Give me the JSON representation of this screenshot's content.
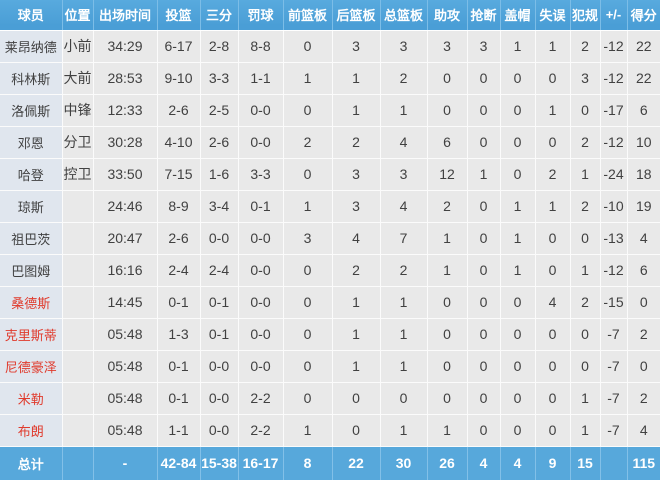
{
  "table": {
    "columns": [
      {
        "key": "player",
        "label": "球员"
      },
      {
        "key": "pos",
        "label": "位置"
      },
      {
        "key": "min",
        "label": "出场时间"
      },
      {
        "key": "fg",
        "label": "投篮"
      },
      {
        "key": "threes",
        "label": "三分"
      },
      {
        "key": "ft",
        "label": "罚球"
      },
      {
        "key": "oreb",
        "label": "前篮板"
      },
      {
        "key": "dreb",
        "label": "后篮板"
      },
      {
        "key": "reb",
        "label": "总篮板"
      },
      {
        "key": "ast",
        "label": "助攻"
      },
      {
        "key": "stl",
        "label": "抢断"
      },
      {
        "key": "blk",
        "label": "盖帽"
      },
      {
        "key": "tov",
        "label": "失误"
      },
      {
        "key": "pf",
        "label": "犯规"
      },
      {
        "key": "plusminus",
        "label": "+/-"
      },
      {
        "key": "pts",
        "label": "得分"
      }
    ],
    "rows": [
      {
        "name_red": false,
        "cells": [
          "莱昂纳德",
          "小前",
          "34:29",
          "6-17",
          "2-8",
          "8-8",
          "0",
          "3",
          "3",
          "3",
          "3",
          "1",
          "1",
          "2",
          "-12",
          "22"
        ]
      },
      {
        "name_red": false,
        "cells": [
          "科林斯",
          "大前",
          "28:53",
          "9-10",
          "3-3",
          "1-1",
          "1",
          "1",
          "2",
          "0",
          "0",
          "0",
          "0",
          "3",
          "-12",
          "22"
        ]
      },
      {
        "name_red": false,
        "cells": [
          "洛佩斯",
          "中锋",
          "12:33",
          "2-6",
          "2-5",
          "0-0",
          "0",
          "1",
          "1",
          "0",
          "0",
          "0",
          "1",
          "0",
          "-17",
          "6"
        ]
      },
      {
        "name_red": false,
        "cells": [
          "邓恩",
          "分卫",
          "30:28",
          "4-10",
          "2-6",
          "0-0",
          "2",
          "2",
          "4",
          "6",
          "0",
          "0",
          "0",
          "2",
          "-12",
          "10"
        ]
      },
      {
        "name_red": false,
        "cells": [
          "哈登",
          "控卫",
          "33:50",
          "7-15",
          "1-6",
          "3-3",
          "0",
          "3",
          "3",
          "12",
          "1",
          "0",
          "2",
          "1",
          "-24",
          "18"
        ]
      },
      {
        "name_red": false,
        "cells": [
          "琼斯",
          "",
          "24:46",
          "8-9",
          "3-4",
          "0-1",
          "1",
          "3",
          "4",
          "2",
          "0",
          "1",
          "1",
          "2",
          "-10",
          "19"
        ]
      },
      {
        "name_red": false,
        "cells": [
          "祖巴茨",
          "",
          "20:47",
          "2-6",
          "0-0",
          "0-0",
          "3",
          "4",
          "7",
          "1",
          "0",
          "1",
          "0",
          "0",
          "-13",
          "4"
        ]
      },
      {
        "name_red": false,
        "cells": [
          "巴图姆",
          "",
          "16:16",
          "2-4",
          "2-4",
          "0-0",
          "0",
          "2",
          "2",
          "1",
          "0",
          "1",
          "0",
          "1",
          "-12",
          "6"
        ]
      },
      {
        "name_red": true,
        "cells": [
          "桑德斯",
          "",
          "14:45",
          "0-1",
          "0-1",
          "0-0",
          "0",
          "1",
          "1",
          "0",
          "0",
          "0",
          "4",
          "2",
          "-15",
          "0"
        ]
      },
      {
        "name_red": true,
        "cells": [
          "克里斯蒂",
          "",
          "05:48",
          "1-3",
          "0-1",
          "0-0",
          "0",
          "1",
          "1",
          "0",
          "0",
          "0",
          "0",
          "0",
          "-7",
          "2"
        ]
      },
      {
        "name_red": true,
        "cells": [
          "尼德豪泽",
          "",
          "05:48",
          "0-1",
          "0-0",
          "0-0",
          "0",
          "1",
          "1",
          "0",
          "0",
          "0",
          "0",
          "0",
          "-7",
          "0"
        ]
      },
      {
        "name_red": true,
        "cells": [
          "米勒",
          "",
          "05:48",
          "0-1",
          "0-0",
          "2-2",
          "0",
          "0",
          "0",
          "0",
          "0",
          "0",
          "0",
          "1",
          "-7",
          "2"
        ]
      },
      {
        "name_red": true,
        "cells": [
          "布朗",
          "",
          "05:48",
          "1-1",
          "0-0",
          "2-2",
          "1",
          "0",
          "1",
          "1",
          "0",
          "0",
          "0",
          "1",
          "-7",
          "4"
        ]
      }
    ],
    "totals": {
      "cells": [
        "总计",
        "",
        "-",
        "42-84",
        "15-38",
        "16-17",
        "8",
        "22",
        "30",
        "26",
        "4",
        "4",
        "9",
        "15",
        "",
        "115"
      ]
    }
  },
  "colors": {
    "header_bg": "#4a9ed6",
    "header_bg_light": "#58aade",
    "header_sep": "#7cbde7",
    "header_text": "#ffffff",
    "row_bg": "#e9e9e9",
    "player_col_bg": "#e0e6ee",
    "cell_sep": "#fbfbfb",
    "totals_bg": "#57a8db",
    "totals_sep": "#82c0e8",
    "red_name": "#e03a2c",
    "body_text": "#414141"
  }
}
